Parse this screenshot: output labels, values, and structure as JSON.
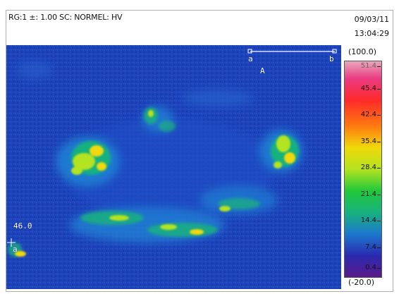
{
  "header": {
    "info_text": "RG:1 ±: 1.00 SC: NORMEL: HV",
    "date": "09/03/11",
    "time": "13:04:29"
  },
  "image": {
    "line_tool": {
      "label_a": "a",
      "label_b": "b",
      "marker": "A"
    },
    "spot": {
      "value": "46.0",
      "label": "a"
    }
  },
  "colorbar": {
    "max": "(100.0)",
    "min": "(-20.0)",
    "ticks": [
      "51.4",
      "45.4",
      "42.4",
      "35.4",
      "28.4",
      "21.4",
      "14.4",
      "7.4",
      "0.4"
    ]
  },
  "colors": {
    "background_blue": "#1b3fb8",
    "hot_green": "#b4e320",
    "hot_yellow": "#f0d90a"
  }
}
